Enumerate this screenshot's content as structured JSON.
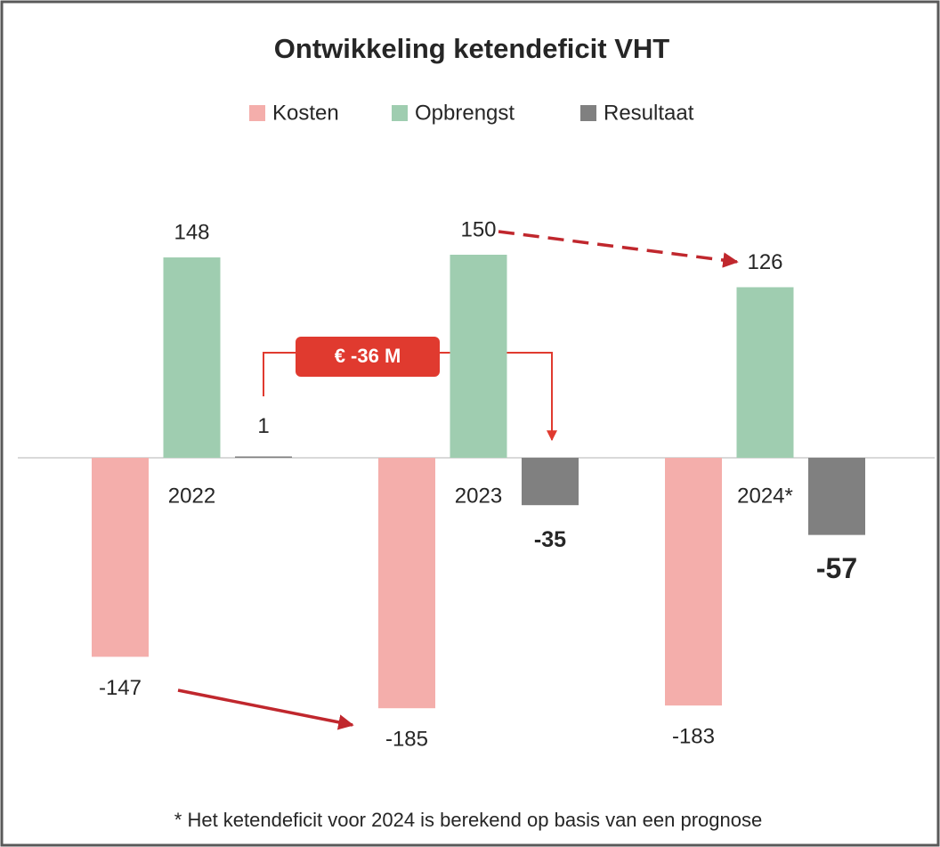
{
  "chart_data": {
    "type": "bar",
    "title": "Ontwikkeling ketendeficit VHT",
    "categories": [
      "2022",
      "2023",
      "2024*"
    ],
    "series": [
      {
        "name": "Kosten",
        "color": "#f4aeab",
        "values": [
          -147,
          -185,
          -183
        ]
      },
      {
        "name": "Opbrengst",
        "color": "#9fcdb0",
        "values": [
          148,
          150,
          126
        ]
      },
      {
        "name": "Resultaat",
        "color": "#808080",
        "values": [
          1,
          -35,
          -57
        ]
      }
    ],
    "ylim": [
      -200,
      175
    ],
    "annotation": "€ -36 M",
    "footnote": "* Het ketendeficit voor 2024 is berekend op basis van een prognose"
  }
}
